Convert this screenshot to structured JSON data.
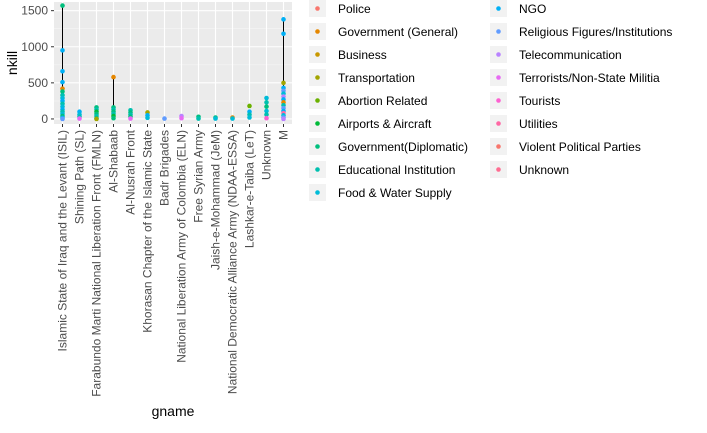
{
  "chart_data": {
    "type": "scatter",
    "xlabel": "gname",
    "ylabel": "nkill",
    "ylim": [
      -70,
      1620
    ],
    "y_ticks": [
      0,
      500,
      1000,
      1500
    ],
    "y_tick_labels": [
      "0",
      "500",
      "1000",
      "1500"
    ],
    "categories": [
      "Islamic State of Iraq and the Levant (ISIL)",
      "Shining Path (SL)",
      "Farabundo Marti National Liberation Front (FMLN)",
      "Al-Shabaab",
      "Al-Nusrah Front",
      "Khorasan Chapter of the Islamic State",
      "Badr Brigades",
      "National Liberation Army of Colombia (ELN)",
      "Free Syrian Army",
      "Jaish-e-Mohammad (JeM)",
      "National Democratic Alliance Army (NDAA-ESSA)",
      "Lashkar-e-Taiba (LeT)",
      "Unknown",
      "M"
    ],
    "range_lines": [
      {
        "category": 0,
        "min": 0,
        "max": 1570
      },
      {
        "category": 3,
        "min": 0,
        "max": 580
      },
      {
        "category": 13,
        "min": 0,
        "max": 1380
      }
    ],
    "legend": {
      "position": "right",
      "entries": [
        {
          "label": "Police",
          "color": "#F8766D"
        },
        {
          "label": "Government (General)",
          "color": "#E58700"
        },
        {
          "label": "Business",
          "color": "#C99800"
        },
        {
          "label": "Transportation",
          "color": "#A3A500"
        },
        {
          "label": "Abortion Related",
          "color": "#6BB100"
        },
        {
          "label": "Airports & Aircraft",
          "color": "#00BA38"
        },
        {
          "label": "Government(Diplomatic)",
          "color": "#00BF7D"
        },
        {
          "label": "Educational Institution",
          "color": "#00C0AF"
        },
        {
          "label": "Food & Water Supply",
          "color": "#00BCD8"
        },
        {
          "label": "NGO",
          "color": "#00B0F6"
        },
        {
          "label": "Religious Figures/Institutions",
          "color": "#619CFF"
        },
        {
          "label": "Telecommunication",
          "color": "#B983FF"
        },
        {
          "label": "Terrorists/Non-State Militia",
          "color": "#E76BF3"
        },
        {
          "label": "Tourists",
          "color": "#FD61D1"
        },
        {
          "label": "Utilities",
          "color": "#FF67A4"
        },
        {
          "label": "Violent Political Parties",
          "color": "#F8766D"
        },
        {
          "label": "Unknown",
          "color": "#FF6C91"
        }
      ]
    },
    "points": [
      {
        "x": 0,
        "y": 1570,
        "color": "#00BF7D"
      },
      {
        "x": 0,
        "y": 950,
        "color": "#00B0F6"
      },
      {
        "x": 0,
        "y": 660,
        "color": "#00B0F6"
      },
      {
        "x": 0,
        "y": 510,
        "color": "#00B0F6"
      },
      {
        "x": 0,
        "y": 420,
        "color": "#E58700"
      },
      {
        "x": 0,
        "y": 380,
        "color": "#00BF7D"
      },
      {
        "x": 0,
        "y": 330,
        "color": "#00C0AF"
      },
      {
        "x": 0,
        "y": 290,
        "color": "#00BCD8"
      },
      {
        "x": 0,
        "y": 250,
        "color": "#00B0F6"
      },
      {
        "x": 0,
        "y": 210,
        "color": "#00C0AF"
      },
      {
        "x": 0,
        "y": 170,
        "color": "#00BCD8"
      },
      {
        "x": 0,
        "y": 130,
        "color": "#00B0F6"
      },
      {
        "x": 0,
        "y": 100,
        "color": "#00C0AF"
      },
      {
        "x": 0,
        "y": 70,
        "color": "#00BCD8"
      },
      {
        "x": 0,
        "y": 40,
        "color": "#00BF7D"
      },
      {
        "x": 0,
        "y": 15,
        "color": "#00B0F6"
      },
      {
        "x": 0,
        "y": 0,
        "color": "#619CFF"
      },
      {
        "x": 1,
        "y": 100,
        "color": "#00B0F6"
      },
      {
        "x": 1,
        "y": 60,
        "color": "#00BCD8"
      },
      {
        "x": 1,
        "y": 30,
        "color": "#00C0AF"
      },
      {
        "x": 1,
        "y": 5,
        "color": "#E76BF3"
      },
      {
        "x": 2,
        "y": 160,
        "color": "#00BF7D"
      },
      {
        "x": 2,
        "y": 130,
        "color": "#00C0AF"
      },
      {
        "x": 2,
        "y": 100,
        "color": "#00BA38"
      },
      {
        "x": 2,
        "y": 70,
        "color": "#00BF7D"
      },
      {
        "x": 2,
        "y": 40,
        "color": "#00C0AF"
      },
      {
        "x": 2,
        "y": 10,
        "color": "#00BF7D"
      },
      {
        "x": 2,
        "y": 0,
        "color": "#A3A500"
      },
      {
        "x": 3,
        "y": 580,
        "color": "#E58700"
      },
      {
        "x": 3,
        "y": 160,
        "color": "#00BF7D"
      },
      {
        "x": 3,
        "y": 130,
        "color": "#00C0AF"
      },
      {
        "x": 3,
        "y": 100,
        "color": "#00BF7D"
      },
      {
        "x": 3,
        "y": 70,
        "color": "#00C0AF"
      },
      {
        "x": 3,
        "y": 40,
        "color": "#00BA38"
      },
      {
        "x": 3,
        "y": 10,
        "color": "#00BF7D"
      },
      {
        "x": 4,
        "y": 120,
        "color": "#00C0AF"
      },
      {
        "x": 4,
        "y": 90,
        "color": "#00BF7D"
      },
      {
        "x": 4,
        "y": 60,
        "color": "#00C0AF"
      },
      {
        "x": 4,
        "y": 30,
        "color": "#00BF7D"
      },
      {
        "x": 4,
        "y": 5,
        "color": "#E76BF3"
      },
      {
        "x": 5,
        "y": 90,
        "color": "#A3A500"
      },
      {
        "x": 5,
        "y": 50,
        "color": "#00B0F6"
      },
      {
        "x": 5,
        "y": 15,
        "color": "#00BCD8"
      },
      {
        "x": 6,
        "y": 5,
        "color": "#619CFF"
      },
      {
        "x": 7,
        "y": 40,
        "color": "#B983FF"
      },
      {
        "x": 7,
        "y": 10,
        "color": "#E76BF3"
      },
      {
        "x": 8,
        "y": 30,
        "color": "#00BF7D"
      },
      {
        "x": 8,
        "y": 5,
        "color": "#00C0AF"
      },
      {
        "x": 9,
        "y": 20,
        "color": "#00BF7D"
      },
      {
        "x": 9,
        "y": 5,
        "color": "#00BCD8"
      },
      {
        "x": 10,
        "y": 20,
        "color": "#E58700"
      },
      {
        "x": 10,
        "y": 5,
        "color": "#00BCD8"
      },
      {
        "x": 11,
        "y": 180,
        "color": "#6BB100"
      },
      {
        "x": 11,
        "y": 100,
        "color": "#00B0F6"
      },
      {
        "x": 11,
        "y": 60,
        "color": "#00C0AF"
      },
      {
        "x": 11,
        "y": 20,
        "color": "#00BCD8"
      },
      {
        "x": 12,
        "y": 290,
        "color": "#00BCD8"
      },
      {
        "x": 12,
        "y": 230,
        "color": "#00C0AF"
      },
      {
        "x": 12,
        "y": 170,
        "color": "#00BF7D"
      },
      {
        "x": 12,
        "y": 110,
        "color": "#00BCD8"
      },
      {
        "x": 12,
        "y": 60,
        "color": "#00C0AF"
      },
      {
        "x": 12,
        "y": 10,
        "color": "#FD61D1"
      },
      {
        "x": 13,
        "y": 1380,
        "color": "#00B0F6"
      },
      {
        "x": 13,
        "y": 1180,
        "color": "#00B0F6"
      },
      {
        "x": 13,
        "y": 500,
        "color": "#A3A500"
      },
      {
        "x": 13,
        "y": 430,
        "color": "#00B0F6"
      },
      {
        "x": 13,
        "y": 390,
        "color": "#619CFF"
      },
      {
        "x": 13,
        "y": 350,
        "color": "#00BCD8"
      },
      {
        "x": 13,
        "y": 310,
        "color": "#B983FF"
      },
      {
        "x": 13,
        "y": 270,
        "color": "#00B0F6"
      },
      {
        "x": 13,
        "y": 230,
        "color": "#E58700"
      },
      {
        "x": 13,
        "y": 190,
        "color": "#00C0AF"
      },
      {
        "x": 13,
        "y": 150,
        "color": "#619CFF"
      },
      {
        "x": 13,
        "y": 110,
        "color": "#00B0F6"
      },
      {
        "x": 13,
        "y": 80,
        "color": "#FF67A4"
      },
      {
        "x": 13,
        "y": 50,
        "color": "#00BCD8"
      },
      {
        "x": 13,
        "y": 20,
        "color": "#619CFF"
      },
      {
        "x": 13,
        "y": 0,
        "color": "#B983FF"
      }
    ]
  }
}
